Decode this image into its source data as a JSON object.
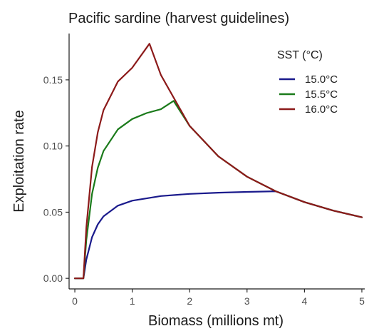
{
  "chart_data": {
    "type": "line",
    "title": "Pacific sardine (harvest guidelines)",
    "xlabel": "Biomass (millions mt)",
    "ylabel": "Exploitation rate",
    "xlim": [
      -0.1,
      5.05
    ],
    "ylim": [
      -0.008,
      0.185
    ],
    "xticks": [
      "0",
      "1",
      "2",
      "3",
      "4",
      "5"
    ],
    "yticks": [
      "0.00",
      "0.05",
      "0.10",
      "0.15"
    ],
    "grid": false,
    "legend": {
      "title": "SST (°C)",
      "position": "top-right"
    },
    "series": [
      {
        "name": "15.0°C",
        "color": "#1a1a8c",
        "x": [
          0.0,
          0.15,
          0.2,
          0.3,
          0.4,
          0.5,
          0.75,
          1.0,
          1.5,
          2.0,
          2.5,
          3.0,
          3.5,
          4.0,
          4.5,
          5.0
        ],
        "y": [
          0.0,
          0.0,
          0.0142,
          0.0311,
          0.0408,
          0.0469,
          0.0549,
          0.0587,
          0.0622,
          0.0638,
          0.0647,
          0.0653,
          0.0658,
          0.0576,
          0.0512,
          0.0461
        ]
      },
      {
        "name": "15.5°C",
        "color": "#1a7a1a",
        "x": [
          0.0,
          0.15,
          0.2,
          0.3,
          0.4,
          0.5,
          0.75,
          1.0,
          1.25,
          1.5,
          1.72,
          2.0,
          2.5,
          3.0,
          3.5,
          4.0,
          4.5,
          5.0
        ],
        "y": [
          0.0,
          0.0,
          0.0291,
          0.0638,
          0.0836,
          0.0962,
          0.1126,
          0.1204,
          0.1249,
          0.1278,
          0.1341,
          0.1152,
          0.0922,
          0.0768,
          0.0658,
          0.0576,
          0.0512,
          0.0461
        ]
      },
      {
        "name": "16.0°C",
        "color": "#8c1a1a",
        "x": [
          0.0,
          0.15,
          0.2,
          0.3,
          0.4,
          0.5,
          0.75,
          1.0,
          1.3,
          1.5,
          2.0,
          2.5,
          3.0,
          3.5,
          4.0,
          4.5,
          5.0
        ],
        "y": [
          0.0,
          0.0,
          0.0384,
          0.0842,
          0.1104,
          0.1271,
          0.1487,
          0.1591,
          0.1773,
          0.1536,
          0.1152,
          0.0922,
          0.0768,
          0.0658,
          0.0576,
          0.0512,
          0.0461
        ]
      }
    ]
  }
}
